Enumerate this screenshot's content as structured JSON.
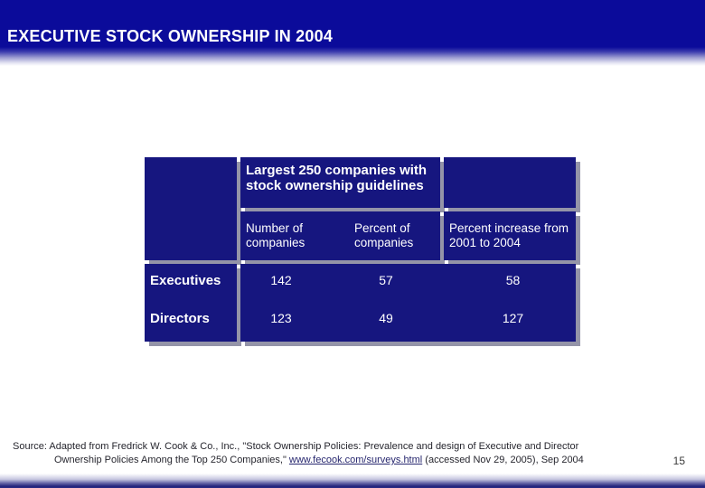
{
  "slide": {
    "title": "EXECUTIVE STOCK OWNERSHIP IN 2004",
    "page_number": "15"
  },
  "table": {
    "header": "Largest 250 companies with stock ownership guidelines",
    "columns": [
      "Number of companies",
      "Percent of companies",
      "Percent increase from 2001 to 2004"
    ],
    "rows": [
      {
        "label": "Executives",
        "values": [
          "142",
          "57",
          "58"
        ]
      },
      {
        "label": "Directors",
        "values": [
          "123",
          "49",
          "127"
        ]
      }
    ]
  },
  "source": {
    "line1": "Source: Adapted from Fredrick W. Cook & Co., Inc., \"Stock Ownership Policies: Prevalence and design of Executive and Director",
    "line2_prefix": "Ownership Policies Among the Top 250 Companies,\" ",
    "link_text": "www.fecook.com/surveys.html",
    "line2_suffix": " (accessed Nov 29, 2005), Sep 2004"
  },
  "colors": {
    "top_bar_blue": "#0b0b9a",
    "table_cell_navy": "#16167f",
    "cell_shadow": "#9494a8",
    "title_text": "#ffffff",
    "source_text": "#26262e",
    "link_text": "#26266e"
  }
}
